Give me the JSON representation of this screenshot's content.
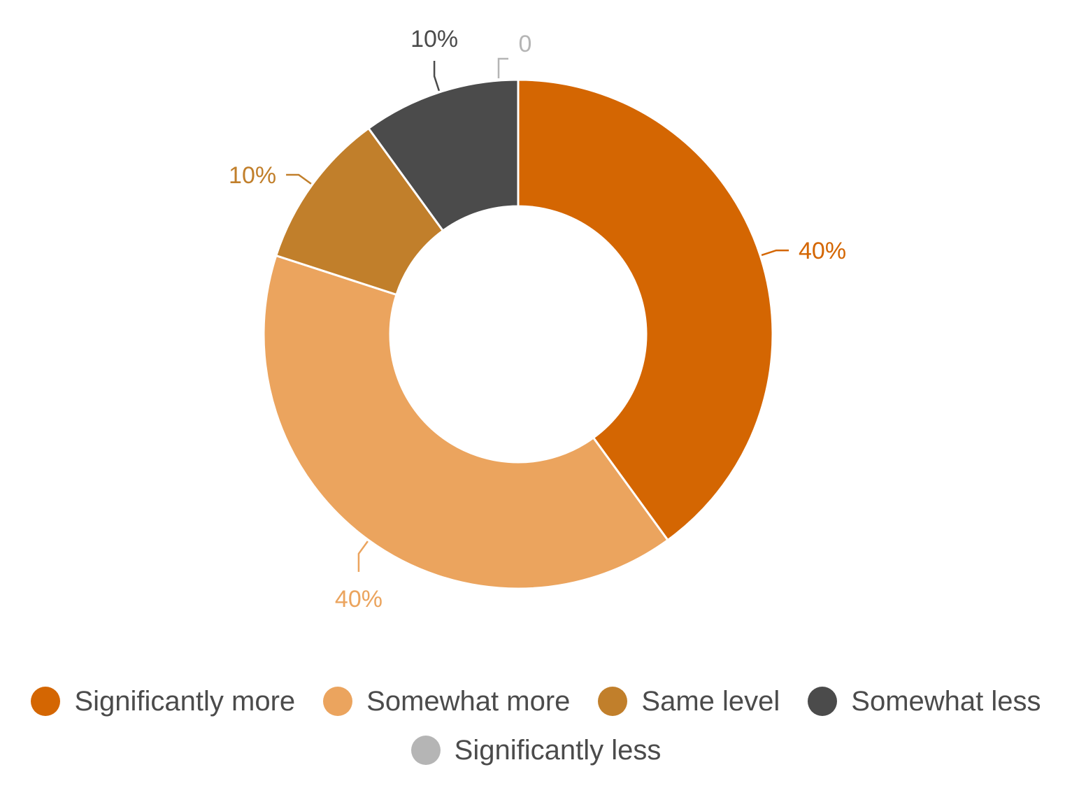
{
  "chart_data": {
    "type": "pie",
    "variant": "donut",
    "categories": [
      "Significantly more",
      "Somewhat more",
      "Same level",
      "Somewhat less",
      "Significantly less"
    ],
    "values": [
      40,
      40,
      10,
      10,
      0
    ],
    "labels": [
      "40%",
      "40%",
      "10%",
      "10%",
      "0"
    ],
    "colors": [
      "#d46602",
      "#eba45e",
      "#c17f2b",
      "#4b4b4b",
      "#b5b5b5"
    ],
    "legend_position": "bottom",
    "title": ""
  }
}
